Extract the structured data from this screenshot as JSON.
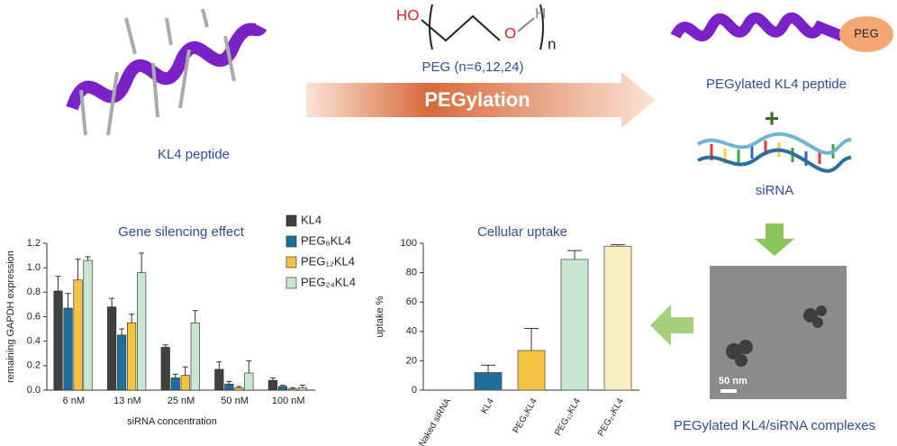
{
  "diagram": {
    "peg_ho": "HO",
    "peg_o": "O",
    "peg_h": "H",
    "peg_n": "n",
    "peg_label": "PEG (n=6,12,24)",
    "arrow_label": "PEGylation",
    "kl4_label": "KL4 peptide",
    "pegylated_label": "PEGylated KL4 peptide",
    "peg_tag": "PEG",
    "plus": "+",
    "sirna_label": "siRNA",
    "complex_label": "PEGylated KL4/siRNA complexes",
    "scale_bar": "50 nm"
  },
  "chart_data": [
    {
      "type": "bar",
      "title": "Gene silencing effect",
      "xlabel": "siRNA concentration",
      "ylabel": "remaining GAPDH expression",
      "categories": [
        "6 nM",
        "13 nM",
        "25 nM",
        "50 nM",
        "100 nM"
      ],
      "series": [
        {
          "name": "KL4",
          "color": "#404040",
          "values": [
            0.81,
            0.68,
            0.35,
            0.17,
            0.08
          ],
          "errors": [
            0.12,
            0.07,
            0.02,
            0.06,
            0.02
          ]
        },
        {
          "name": "PEG₆KL4",
          "color": "#1f6e9c",
          "values": [
            0.67,
            0.45,
            0.1,
            0.05,
            0.03
          ],
          "errors": [
            0.12,
            0.05,
            0.03,
            0.02,
            0.01
          ]
        },
        {
          "name": "PEG₁₂KL4",
          "color": "#f5c342",
          "values": [
            0.9,
            0.55,
            0.12,
            0.02,
            0.01
          ],
          "errors": [
            0.17,
            0.07,
            0.07,
            0.01,
            0.01
          ]
        },
        {
          "name": "PEG₂₄KL4",
          "color": "#c8e6d0",
          "values": [
            1.06,
            0.96,
            0.55,
            0.14,
            0.02
          ],
          "errors": [
            0.03,
            0.16,
            0.1,
            0.1,
            0.02
          ]
        }
      ],
      "ylim": [
        0,
        1.2
      ],
      "yticks": [
        {
          "value": 0,
          "label": "0.0"
        },
        {
          "value": 0.2,
          "label": "0.2"
        },
        {
          "value": 0.4,
          "label": "0.4"
        },
        {
          "value": 0.6,
          "label": "0.6"
        },
        {
          "value": 0.8,
          "label": "0.8"
        },
        {
          "value": 1,
          "label": "1.0"
        },
        {
          "value": 1.2,
          "label": "1.2"
        }
      ]
    },
    {
      "type": "bar",
      "title": "Cellular uptake",
      "ylabel": "uptake %",
      "categories": [
        "Naked siRNA",
        "KL4",
        "PEG₆KL4",
        "PEG₁₂KL4",
        "PEG₂₄KL4"
      ],
      "values": [
        0,
        12,
        27,
        89,
        98
      ],
      "errors": [
        0,
        5,
        15,
        6,
        1
      ],
      "colors": [
        "#ffffff",
        "#1f6e9c",
        "#f5c342",
        "#c8e6d0",
        "#f8eec0"
      ],
      "ylim": [
        0,
        100
      ],
      "yticks": [
        0,
        20,
        40,
        60,
        80,
        100
      ]
    }
  ]
}
